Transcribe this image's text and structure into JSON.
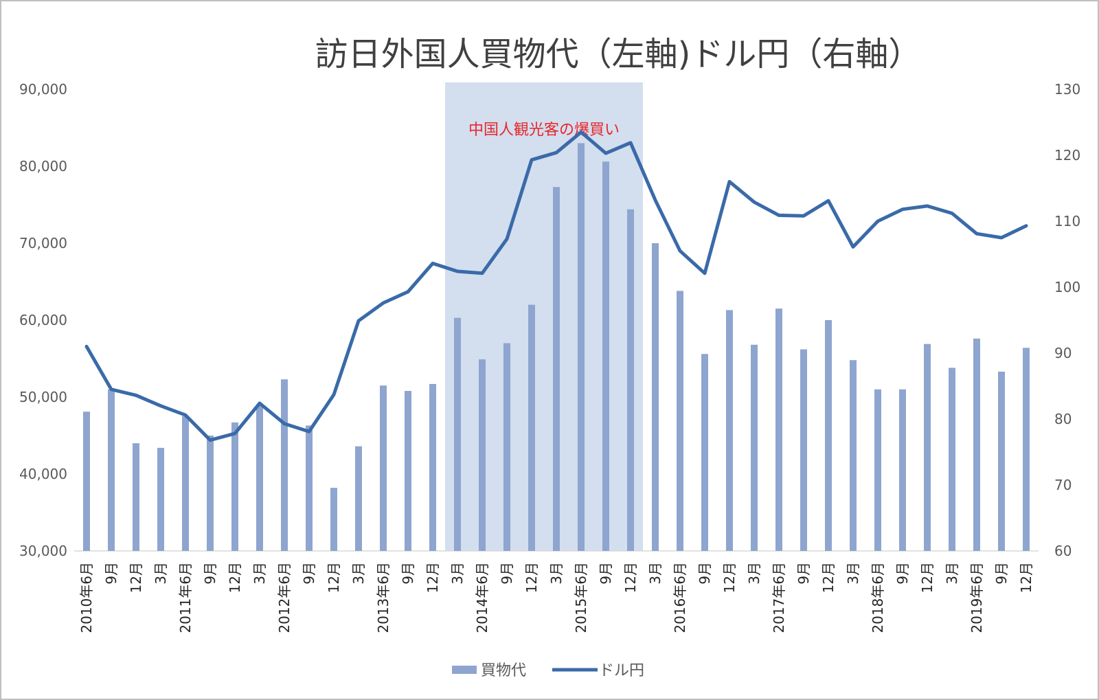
{
  "chart_data": {
    "type": "bar+line",
    "title": "訪日外国人買物代（左軸)ドル円（右軸）",
    "annotation": "中国人観光客の爆買い",
    "categories": [
      "2010年6月",
      "9月",
      "12月",
      "3月",
      "2011年6月",
      "9月",
      "12月",
      "3月",
      "2012年6月",
      "9月",
      "12月",
      "3月",
      "2013年6月",
      "9月",
      "12月",
      "3月",
      "2014年6月",
      "9月",
      "12月",
      "3月",
      "2015年6月",
      "9月",
      "12月",
      "3月",
      "2016年6月",
      "9月",
      "12月",
      "3月",
      "2017年6月",
      "9月",
      "12月",
      "3月",
      "2018年6月",
      "9月",
      "12月",
      "3月",
      "2019年6月",
      "9月",
      "12月"
    ],
    "series": [
      {
        "name": "買物代",
        "type": "bar",
        "axis": "left",
        "color": "#8ea5cf",
        "values": [
          48100,
          51000,
          44000,
          43400,
          47500,
          45000,
          46700,
          49000,
          52300,
          46300,
          38200,
          43600,
          51500,
          50800,
          51700,
          60300,
          54900,
          57000,
          62000,
          77300,
          83000,
          80600,
          74400,
          70000,
          63800,
          55600,
          61300,
          56800,
          61500,
          56200,
          60000,
          54800,
          51000,
          51000,
          56900,
          53800,
          57600,
          53300,
          56400
        ]
      },
      {
        "name": "ドル円",
        "type": "line",
        "axis": "right",
        "color": "#3a6aa8",
        "values": [
          91.0,
          84.5,
          83.6,
          82.0,
          80.6,
          76.8,
          77.8,
          82.4,
          79.3,
          78.1,
          83.7,
          94.9,
          97.6,
          99.3,
          103.6,
          102.4,
          102.1,
          107.3,
          119.3,
          120.4,
          123.5,
          120.3,
          121.9,
          113.2,
          105.5,
          102.1,
          116.0,
          112.9,
          110.9,
          110.8,
          113.1,
          106.1,
          110.0,
          111.8,
          112.3,
          111.2,
          108.1,
          107.5,
          109.3
        ]
      }
    ],
    "y_left": {
      "min": 30000,
      "max": 90000,
      "ticks": [
        "30,000",
        "40,000",
        "50,000",
        "60,000",
        "70,000",
        "80,000",
        "90,000"
      ]
    },
    "y_right": {
      "min": 60,
      "max": 130,
      "ticks": [
        "60",
        "70",
        "80",
        "90",
        "100",
        "110",
        "120",
        "130"
      ]
    },
    "highlight_range": {
      "from_index": 15,
      "to_index": 22,
      "color": "#d3deef"
    },
    "legend": {
      "position": "bottom",
      "items": [
        "買物代",
        "ドル円"
      ]
    },
    "grid": false
  }
}
